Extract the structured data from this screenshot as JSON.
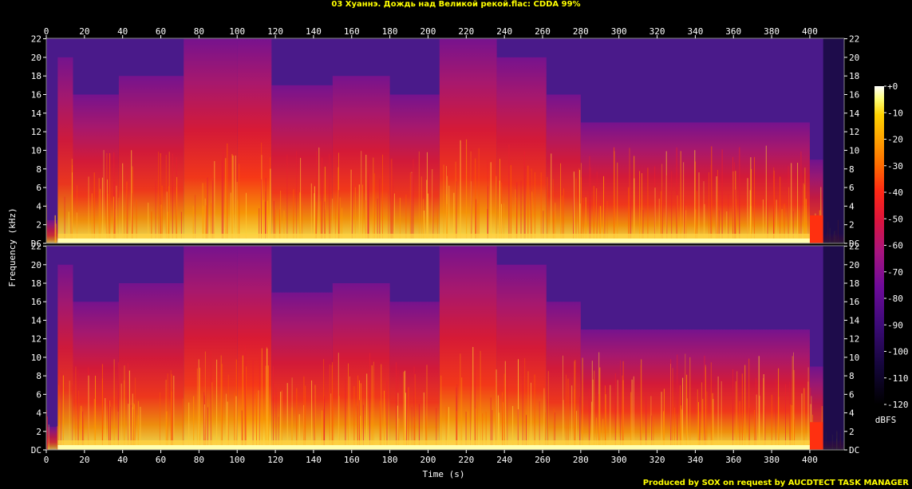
{
  "title": "03 Хуаннэ. Дождь над Великой рекой.flac: CDDA 99%",
  "footer": "Produced by SOX on request by AUCDTECT TASK MANAGER",
  "chart_data": {
    "type": "heatmap",
    "title": "03 Хуаннэ. Дождь над Великой рекой.flac: CDDA 99%",
    "xlabel": "Time (s)",
    "ylabel": "Frequency (kHz)",
    "x_ticks": [
      "0",
      "20",
      "40",
      "60",
      "80",
      "100",
      "120",
      "140",
      "160",
      "180",
      "200",
      "220",
      "240",
      "260",
      "280",
      "300",
      "320",
      "340",
      "360",
      "380",
      "400"
    ],
    "xlim": [
      0,
      418
    ],
    "y_ticks": [
      "DC",
      "2",
      "4",
      "6",
      "8",
      "10",
      "12",
      "14",
      "16",
      "18",
      "20",
      "22"
    ],
    "ylim": [
      0,
      22.05
    ],
    "channels": 2,
    "colorbar": {
      "label": "dBFS",
      "range": [
        -120,
        0
      ],
      "ticks": [
        "+0",
        "-10",
        "-20",
        "-30",
        "-40",
        "-50",
        "-60",
        "-70",
        "-80",
        "-90",
        "-100",
        "-110",
        "-120"
      ]
    },
    "segments": [
      {
        "start": 0,
        "end": 6,
        "top_khz": 2.5,
        "level": 0.25
      },
      {
        "start": 6,
        "end": 14,
        "top_khz": 20,
        "level": 0.55
      },
      {
        "start": 14,
        "end": 38,
        "top_khz": 16,
        "level": 0.6
      },
      {
        "start": 38,
        "end": 72,
        "top_khz": 18,
        "level": 0.58
      },
      {
        "start": 72,
        "end": 100,
        "top_khz": 22,
        "level": 0.62
      },
      {
        "start": 100,
        "end": 118,
        "top_khz": 22,
        "level": 0.66
      },
      {
        "start": 118,
        "end": 150,
        "top_khz": 17,
        "level": 0.6
      },
      {
        "start": 150,
        "end": 180,
        "top_khz": 18,
        "level": 0.62
      },
      {
        "start": 180,
        "end": 206,
        "top_khz": 16,
        "level": 0.58
      },
      {
        "start": 206,
        "end": 236,
        "top_khz": 22,
        "level": 0.64
      },
      {
        "start": 236,
        "end": 262,
        "top_khz": 20,
        "level": 0.62
      },
      {
        "start": 262,
        "end": 280,
        "top_khz": 16,
        "level": 0.58
      },
      {
        "start": 280,
        "end": 400,
        "top_khz": 13,
        "level": 0.6
      },
      {
        "start": 400,
        "end": 407,
        "top_khz": 9,
        "level": 0.4
      },
      {
        "start": 407,
        "end": 418,
        "top_khz": 1,
        "level": 0.15
      }
    ],
    "palette": [
      "#000000",
      "#1a0a3c",
      "#3c0a78",
      "#6a0aa0",
      "#a0148c",
      "#d2144b",
      "#f01e1e",
      "#ff4b0a",
      "#ff8c00",
      "#ffc800",
      "#ffff64",
      "#ffffff"
    ]
  }
}
